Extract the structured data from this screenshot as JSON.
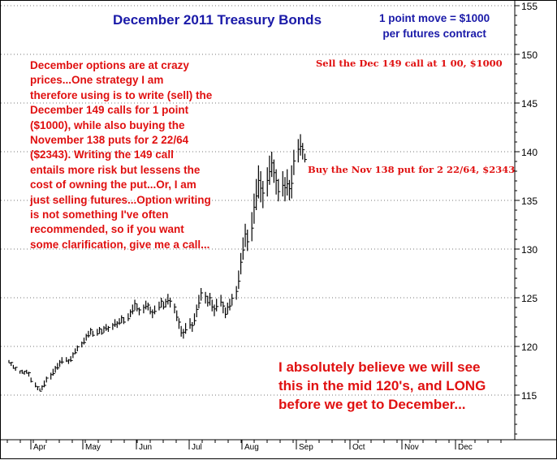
{
  "chart_data": {
    "type": "bar",
    "subtype": "ohlc",
    "title": "December 2011 Treasury Bonds",
    "ylim": [
      110.5,
      156
    ],
    "y_ticks": [
      "115",
      "120",
      "125",
      "130",
      "135",
      "140",
      "145",
      "150",
      "155"
    ],
    "x_ticks": [
      "Apr",
      "May",
      "Jun",
      "Jul",
      "Aug",
      "Sep",
      "Oct",
      "Nov",
      "Dec"
    ],
    "grid": "horizontal dotted",
    "y_axis_side": "right",
    "colors": {
      "title": "#1a1aa8",
      "notes": "#e01010",
      "bars": "#000000"
    },
    "price_bars": [
      {
        "d": 0,
        "h": 118.6,
        "l": 118.3
      },
      {
        "d": 1,
        "h": 118.4,
        "l": 118.0
      },
      {
        "d": 2,
        "h": 118.1,
        "l": 117.7
      },
      {
        "d": 3,
        "h": 117.9,
        "l": 117.5
      },
      {
        "d": 5,
        "h": 117.5,
        "l": 117.2
      },
      {
        "d": 6,
        "h": 117.6,
        "l": 117.2
      },
      {
        "d": 7,
        "h": 117.5,
        "l": 117.1
      },
      {
        "d": 8,
        "h": 117.6,
        "l": 117.2
      },
      {
        "d": 9,
        "h": 117.4,
        "l": 116.9
      },
      {
        "d": 10,
        "h": 116.8,
        "l": 116.3
      },
      {
        "d": 12,
        "h": 116.3,
        "l": 115.8
      },
      {
        "d": 13,
        "h": 115.9,
        "l": 115.5
      },
      {
        "d": 14,
        "h": 115.7,
        "l": 115.4
      },
      {
        "d": 15,
        "h": 116.0,
        "l": 115.5
      },
      {
        "d": 16,
        "h": 116.5,
        "l": 115.8
      },
      {
        "d": 17,
        "h": 116.9,
        "l": 116.3
      },
      {
        "d": 19,
        "h": 117.3,
        "l": 116.6
      },
      {
        "d": 20,
        "h": 117.7,
        "l": 117.0
      },
      {
        "d": 21,
        "h": 118.0,
        "l": 117.3
      },
      {
        "d": 22,
        "h": 118.3,
        "l": 117.6
      },
      {
        "d": 23,
        "h": 118.6,
        "l": 117.9
      },
      {
        "d": 24,
        "h": 118.9,
        "l": 118.2
      },
      {
        "d": 26,
        "h": 118.9,
        "l": 118.4
      },
      {
        "d": 27,
        "h": 118.7,
        "l": 118.2
      },
      {
        "d": 28,
        "h": 119.0,
        "l": 118.4
      },
      {
        "d": 29,
        "h": 119.4,
        "l": 118.8
      },
      {
        "d": 30,
        "h": 119.8,
        "l": 119.2
      },
      {
        "d": 31,
        "h": 120.1,
        "l": 119.5
      },
      {
        "d": 33,
        "h": 120.5,
        "l": 119.9
      },
      {
        "d": 34,
        "h": 120.9,
        "l": 120.2
      },
      {
        "d": 35,
        "h": 121.3,
        "l": 120.6
      },
      {
        "d": 36,
        "h": 121.6,
        "l": 120.9
      },
      {
        "d": 37,
        "h": 121.9,
        "l": 121.2
      },
      {
        "d": 38,
        "h": 121.6,
        "l": 121.0
      },
      {
        "d": 40,
        "h": 121.8,
        "l": 121.1
      },
      {
        "d": 41,
        "h": 122.0,
        "l": 121.3
      },
      {
        "d": 42,
        "h": 121.8,
        "l": 121.2
      },
      {
        "d": 43,
        "h": 122.1,
        "l": 121.4
      },
      {
        "d": 44,
        "h": 122.3,
        "l": 121.6
      },
      {
        "d": 45,
        "h": 122.1,
        "l": 121.5
      },
      {
        "d": 47,
        "h": 122.4,
        "l": 121.7
      },
      {
        "d": 48,
        "h": 122.8,
        "l": 122.0
      },
      {
        "d": 49,
        "h": 122.6,
        "l": 121.9
      },
      {
        "d": 50,
        "h": 122.9,
        "l": 122.2
      },
      {
        "d": 51,
        "h": 123.2,
        "l": 122.4
      },
      {
        "d": 52,
        "h": 123.0,
        "l": 122.3
      },
      {
        "d": 54,
        "h": 123.4,
        "l": 122.6
      },
      {
        "d": 55,
        "h": 123.8,
        "l": 123.0
      },
      {
        "d": 56,
        "h": 124.3,
        "l": 123.3
      },
      {
        "d": 57,
        "h": 124.8,
        "l": 123.7
      },
      {
        "d": 58,
        "h": 124.4,
        "l": 123.6
      },
      {
        "d": 59,
        "h": 124.0,
        "l": 123.2
      },
      {
        "d": 61,
        "h": 124.3,
        "l": 123.4
      },
      {
        "d": 62,
        "h": 124.7,
        "l": 123.8
      },
      {
        "d": 63,
        "h": 124.5,
        "l": 123.7
      },
      {
        "d": 64,
        "h": 124.1,
        "l": 123.3
      },
      {
        "d": 65,
        "h": 123.8,
        "l": 122.9
      },
      {
        "d": 66,
        "h": 124.2,
        "l": 123.3
      },
      {
        "d": 68,
        "h": 124.6,
        "l": 123.7
      },
      {
        "d": 69,
        "h": 125.0,
        "l": 124.0
      },
      {
        "d": 70,
        "h": 124.6,
        "l": 123.8
      },
      {
        "d": 71,
        "h": 124.9,
        "l": 124.0
      },
      {
        "d": 72,
        "h": 125.4,
        "l": 124.3
      },
      {
        "d": 73,
        "h": 125.0,
        "l": 124.0
      },
      {
        "d": 75,
        "h": 124.4,
        "l": 123.4
      },
      {
        "d": 76,
        "h": 123.7,
        "l": 122.6
      },
      {
        "d": 77,
        "h": 122.9,
        "l": 121.8
      },
      {
        "d": 78,
        "h": 122.1,
        "l": 121.0
      },
      {
        "d": 79,
        "h": 121.8,
        "l": 120.8
      },
      {
        "d": 80,
        "h": 122.4,
        "l": 121.3
      },
      {
        "d": 82,
        "h": 122.9,
        "l": 121.8
      },
      {
        "d": 83,
        "h": 122.5,
        "l": 121.5
      },
      {
        "d": 84,
        "h": 123.4,
        "l": 122.2
      },
      {
        "d": 85,
        "h": 124.3,
        "l": 123.0
      },
      {
        "d": 86,
        "h": 125.3,
        "l": 123.9
      },
      {
        "d": 87,
        "h": 126.0,
        "l": 124.7
      },
      {
        "d": 89,
        "h": 125.6,
        "l": 124.4
      },
      {
        "d": 90,
        "h": 125.2,
        "l": 124.1
      },
      {
        "d": 91,
        "h": 125.5,
        "l": 124.2
      },
      {
        "d": 92,
        "h": 124.8,
        "l": 123.6
      },
      {
        "d": 93,
        "h": 124.3,
        "l": 123.1
      },
      {
        "d": 94,
        "h": 124.9,
        "l": 123.6
      },
      {
        "d": 96,
        "h": 125.3,
        "l": 124.1
      },
      {
        "d": 97,
        "h": 124.6,
        "l": 123.4
      },
      {
        "d": 98,
        "h": 124.0,
        "l": 122.9
      },
      {
        "d": 99,
        "h": 124.5,
        "l": 123.3
      },
      {
        "d": 100,
        "h": 124.9,
        "l": 123.7
      },
      {
        "d": 101,
        "h": 125.4,
        "l": 124.2
      },
      {
        "d": 103,
        "h": 126.2,
        "l": 124.8
      },
      {
        "d": 104,
        "h": 127.8,
        "l": 125.9
      },
      {
        "d": 105,
        "h": 129.6,
        "l": 127.4
      },
      {
        "d": 106,
        "h": 131.2,
        "l": 128.9
      },
      {
        "d": 107,
        "h": 132.6,
        "l": 130.2
      },
      {
        "d": 108,
        "h": 132.0,
        "l": 129.8
      },
      {
        "d": 110,
        "h": 133.8,
        "l": 130.8
      },
      {
        "d": 111,
        "h": 135.7,
        "l": 132.6
      },
      {
        "d": 112,
        "h": 137.2,
        "l": 134.0
      },
      {
        "d": 113,
        "h": 138.6,
        "l": 135.2
      },
      {
        "d": 114,
        "h": 138.0,
        "l": 134.8
      },
      {
        "d": 115,
        "h": 137.0,
        "l": 134.2
      },
      {
        "d": 117,
        "h": 138.4,
        "l": 135.4
      },
      {
        "d": 118,
        "h": 139.6,
        "l": 136.6
      },
      {
        "d": 119,
        "h": 140.0,
        "l": 137.4
      },
      {
        "d": 120,
        "h": 139.2,
        "l": 136.8
      },
      {
        "d": 121,
        "h": 138.2,
        "l": 135.6
      },
      {
        "d": 122,
        "h": 137.2,
        "l": 134.9
      },
      {
        "d": 124,
        "h": 138.0,
        "l": 135.4
      },
      {
        "d": 125,
        "h": 137.4,
        "l": 134.9
      },
      {
        "d": 126,
        "h": 138.2,
        "l": 135.5
      },
      {
        "d": 127,
        "h": 137.1,
        "l": 135.0
      },
      {
        "d": 128,
        "h": 138.6,
        "l": 135.2
      },
      {
        "d": 129,
        "h": 140.2,
        "l": 137.6
      },
      {
        "d": 131,
        "h": 141.3,
        "l": 138.9
      },
      {
        "d": 132,
        "h": 141.8,
        "l": 139.6
      },
      {
        "d": 133,
        "h": 140.9,
        "l": 139.2
      },
      {
        "d": 134,
        "h": 139.8,
        "l": 138.9
      }
    ]
  },
  "annotations": {
    "point_move": "1 point move = $1000\nper futures contract",
    "left_note": "December options are at crazy\nprices...One strategy I am\ntherefore using is to write (sell) the\nDecember 149 calls for 1 point\n($1000), while also buying the\nNovember 138 puts for 2 22/64\n($2343). Writing the 149 call\nentails more risk but lessens the\ncost of owning the put...Or, I am\njust selling futures...Option writing\nis not something I've often\nrecommended, so if you want\nsome clarification, give me a call...",
    "sell_call": "Sell the Dec 149 call at 1 00, $1000",
    "buy_put": "Buy the Nov 138 put for 2 22/64, $2343",
    "forecast": "I absolutely believe we will see\nthis in the mid 120's, and LONG\nbefore we get to December..."
  }
}
